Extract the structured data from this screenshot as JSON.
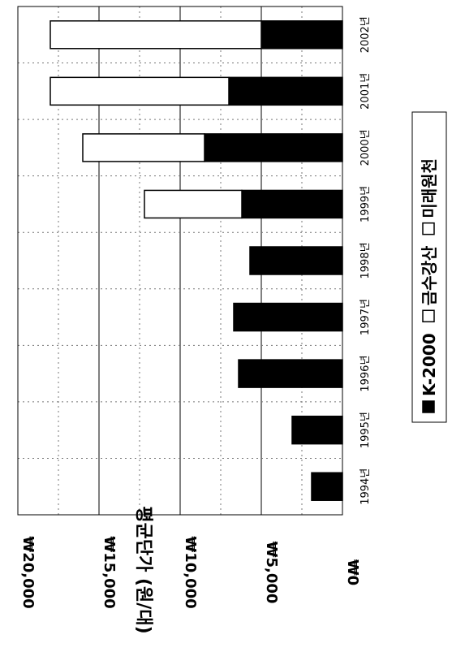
{
  "chart_data": {
    "type": "bar",
    "stacked": true,
    "orientation": "rotated-90-clockwise",
    "categories": [
      "1994년",
      "1995년",
      "1996년",
      "1997년",
      "1998년",
      "1999년",
      "2000년",
      "2001년",
      "2002년"
    ],
    "series": [
      {
        "name": "K-2000",
        "color": "#000000",
        "values": [
          1900,
          3100,
          6400,
          6700,
          5700,
          6200,
          8500,
          7000,
          5000
        ]
      },
      {
        "name": "금수강산",
        "color": "#ffffff",
        "values": [
          0,
          0,
          0,
          0,
          0,
          6000,
          7500,
          11000,
          13000
        ]
      },
      {
        "name": "미래원천",
        "color": "#ffffff",
        "values": [
          0,
          0,
          0,
          0,
          0,
          0,
          0,
          0,
          0
        ]
      }
    ],
    "ylabel": "평균단가 (원/대)",
    "yticks": [
      "₩0",
      "₩5,000",
      "₩10,000",
      "₩15,000",
      "₩20,000"
    ],
    "ylim": [
      0,
      20000
    ],
    "grid": true,
    "legend_position": "right"
  }
}
